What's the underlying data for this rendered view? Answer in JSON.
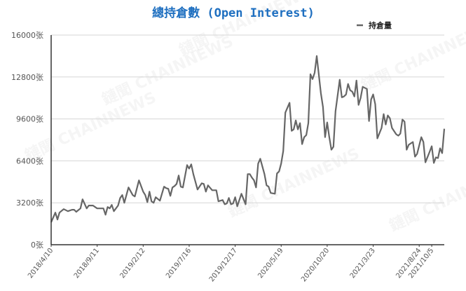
{
  "chart_data": {
    "type": "line",
    "title": "總持倉數 (Open Interest)",
    "xlabel": "",
    "ylabel": "",
    "y_unit_suffix": "张",
    "ylim": [
      0,
      16000
    ],
    "yticks": [
      0,
      3200,
      6400,
      9600,
      12800,
      16000
    ],
    "ytick_labels": [
      "0张",
      "3200张",
      "6400张",
      "9600张",
      "12800张",
      "16000张"
    ],
    "xlim": [
      "2018-04-10",
      "2021-11-16"
    ],
    "xticks": [
      "2018-04-10",
      "2018-09-11",
      "2019-02-12",
      "2019-07-16",
      "2019-12-17",
      "2020-05-19",
      "2020-10-20",
      "2021-03-23",
      "2021-08-24",
      "2021-10-05"
    ],
    "xtick_labels": [
      "2018/4/10",
      "2018/9/11",
      "2019/2/12",
      "2019/7/16",
      "2019/12/17",
      "2020/5/19",
      "2020/10/20",
      "2021/3/23",
      "2021/8/24",
      "2021/10/5"
    ],
    "grid": "horizontal",
    "legend": "top-right",
    "series": [
      {
        "name": "持倉量",
        "color": "#666666",
        "points": [
          [
            "2018-04-10",
            1720
          ],
          [
            "2018-04-24",
            2450
          ],
          [
            "2018-05-01",
            1920
          ],
          [
            "2018-05-08",
            2450
          ],
          [
            "2018-05-22",
            2720
          ],
          [
            "2018-06-05",
            2560
          ],
          [
            "2018-06-19",
            2670
          ],
          [
            "2018-06-26",
            2670
          ],
          [
            "2018-07-03",
            2510
          ],
          [
            "2018-07-17",
            2770
          ],
          [
            "2018-07-24",
            3470
          ],
          [
            "2018-08-07",
            2770
          ],
          [
            "2018-08-14",
            2990
          ],
          [
            "2018-08-28",
            2990
          ],
          [
            "2018-09-11",
            2770
          ],
          [
            "2018-10-02",
            2770
          ],
          [
            "2018-10-09",
            2290
          ],
          [
            "2018-10-16",
            2880
          ],
          [
            "2018-10-23",
            2770
          ],
          [
            "2018-10-30",
            3040
          ],
          [
            "2018-11-06",
            2560
          ],
          [
            "2018-11-20",
            2990
          ],
          [
            "2018-11-27",
            3570
          ],
          [
            "2018-12-04",
            3790
          ],
          [
            "2018-12-11",
            3200
          ],
          [
            "2018-12-25",
            4370
          ],
          [
            "2019-01-08",
            3790
          ],
          [
            "2019-01-15",
            3680
          ],
          [
            "2019-01-29",
            4910
          ],
          [
            "2019-02-12",
            4050
          ],
          [
            "2019-02-19",
            3790
          ],
          [
            "2019-02-26",
            3250
          ],
          [
            "2019-03-05",
            4050
          ],
          [
            "2019-03-12",
            3310
          ],
          [
            "2019-03-19",
            3200
          ],
          [
            "2019-03-26",
            3630
          ],
          [
            "2019-04-09",
            3360
          ],
          [
            "2019-04-23",
            4430
          ],
          [
            "2019-04-30",
            4320
          ],
          [
            "2019-05-07",
            4270
          ],
          [
            "2019-05-14",
            3730
          ],
          [
            "2019-05-21",
            4370
          ],
          [
            "2019-05-28",
            4480
          ],
          [
            "2019-06-04",
            4640
          ],
          [
            "2019-06-11",
            5280
          ],
          [
            "2019-06-18",
            4430
          ],
          [
            "2019-06-25",
            4370
          ],
          [
            "2019-07-09",
            6080
          ],
          [
            "2019-07-16",
            5810
          ],
          [
            "2019-07-23",
            6130
          ],
          [
            "2019-07-30",
            5390
          ],
          [
            "2019-08-13",
            4210
          ],
          [
            "2019-08-27",
            4690
          ],
          [
            "2019-09-03",
            4640
          ],
          [
            "2019-09-10",
            4050
          ],
          [
            "2019-09-17",
            4530
          ],
          [
            "2019-10-01",
            4160
          ],
          [
            "2019-10-15",
            4160
          ],
          [
            "2019-10-22",
            3310
          ],
          [
            "2019-11-05",
            3410
          ],
          [
            "2019-11-12",
            3090
          ],
          [
            "2019-11-19",
            3150
          ],
          [
            "2019-11-26",
            3570
          ],
          [
            "2019-12-03",
            3090
          ],
          [
            "2019-12-10",
            3150
          ],
          [
            "2019-12-17",
            3630
          ],
          [
            "2019-12-24",
            2930
          ],
          [
            "2020-01-07",
            3890
          ],
          [
            "2020-01-21",
            3090
          ],
          [
            "2020-01-28",
            5390
          ],
          [
            "2020-02-04",
            5390
          ],
          [
            "2020-02-11",
            5120
          ],
          [
            "2020-02-18",
            4910
          ],
          [
            "2020-02-25",
            4370
          ],
          [
            "2020-03-03",
            6190
          ],
          [
            "2020-03-10",
            6560
          ],
          [
            "2020-03-24",
            5390
          ],
          [
            "2020-03-31",
            4530
          ],
          [
            "2020-04-07",
            4430
          ],
          [
            "2020-04-14",
            3950
          ],
          [
            "2020-04-28",
            3890
          ],
          [
            "2020-05-05",
            5440
          ],
          [
            "2020-05-12",
            5600
          ],
          [
            "2020-05-19",
            6190
          ],
          [
            "2020-05-26",
            7150
          ],
          [
            "2020-06-02",
            10080
          ],
          [
            "2020-06-16",
            10830
          ],
          [
            "2020-06-23",
            8690
          ],
          [
            "2020-06-30",
            8800
          ],
          [
            "2020-07-07",
            9490
          ],
          [
            "2020-07-14",
            8800
          ],
          [
            "2020-07-21",
            9280
          ],
          [
            "2020-07-28",
            7680
          ],
          [
            "2020-08-04",
            8210
          ],
          [
            "2020-08-11",
            8370
          ],
          [
            "2020-08-18",
            9280
          ],
          [
            "2020-08-25",
            13010
          ],
          [
            "2020-09-01",
            12640
          ],
          [
            "2020-09-08",
            13120
          ],
          [
            "2020-09-15",
            14400
          ],
          [
            "2020-09-29",
            11570
          ],
          [
            "2020-10-06",
            10510
          ],
          [
            "2020-10-13",
            8210
          ],
          [
            "2020-10-20",
            9330
          ],
          [
            "2020-10-27",
            8210
          ],
          [
            "2020-11-03",
            7250
          ],
          [
            "2020-11-10",
            7470
          ],
          [
            "2020-11-17",
            10190
          ],
          [
            "2020-12-01",
            12590
          ],
          [
            "2020-12-08",
            11250
          ],
          [
            "2020-12-15",
            11310
          ],
          [
            "2020-12-22",
            11470
          ],
          [
            "2020-12-29",
            12270
          ],
          [
            "2021-01-05",
            11790
          ],
          [
            "2021-01-12",
            11680
          ],
          [
            "2021-01-19",
            11310
          ],
          [
            "2021-01-26",
            12530
          ],
          [
            "2021-02-02",
            10670
          ],
          [
            "2021-02-09",
            11200
          ],
          [
            "2021-02-16",
            12050
          ],
          [
            "2021-03-02",
            11890
          ],
          [
            "2021-03-09",
            9440
          ],
          [
            "2021-03-16",
            11090
          ],
          [
            "2021-03-23",
            11470
          ],
          [
            "2021-03-30",
            10720
          ],
          [
            "2021-04-06",
            8110
          ],
          [
            "2021-04-20",
            8910
          ],
          [
            "2021-04-27",
            9970
          ],
          [
            "2021-05-04",
            9170
          ],
          [
            "2021-05-11",
            9870
          ],
          [
            "2021-05-18",
            9650
          ],
          [
            "2021-05-25",
            8910
          ],
          [
            "2021-06-08",
            8430
          ],
          [
            "2021-06-15",
            8320
          ],
          [
            "2021-06-22",
            8480
          ],
          [
            "2021-06-29",
            9550
          ],
          [
            "2021-07-06",
            9390
          ],
          [
            "2021-07-13",
            7250
          ],
          [
            "2021-07-20",
            7630
          ],
          [
            "2021-08-03",
            7840
          ],
          [
            "2021-08-10",
            6720
          ],
          [
            "2021-08-17",
            6930
          ],
          [
            "2021-08-31",
            8210
          ],
          [
            "2021-09-07",
            7840
          ],
          [
            "2021-09-14",
            6290
          ],
          [
            "2021-09-28",
            7090
          ],
          [
            "2021-10-05",
            7520
          ],
          [
            "2021-10-12",
            6240
          ],
          [
            "2021-10-19",
            6670
          ],
          [
            "2021-10-26",
            6610
          ],
          [
            "2021-11-02",
            7360
          ],
          [
            "2021-11-09",
            6990
          ],
          [
            "2021-11-16",
            8850
          ]
        ]
      }
    ]
  },
  "watermark": "鏈聞 CHAINNEWS"
}
